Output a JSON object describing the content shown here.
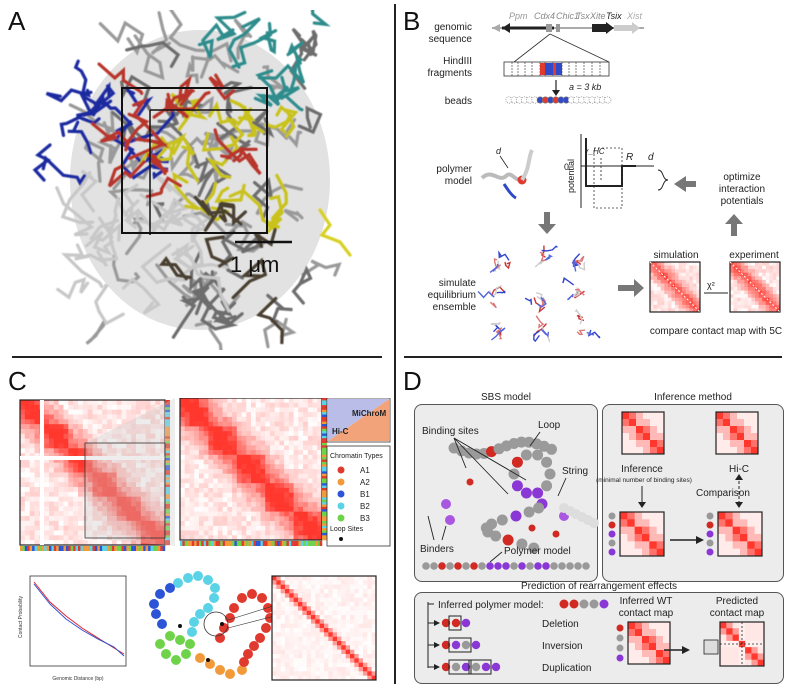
{
  "panels": {
    "a": {
      "letter": "A",
      "scale_label": "1 μm"
    },
    "b": {
      "letter": "B",
      "genes": [
        "Ppm",
        "Cdx4",
        "Chic1",
        "Tsx",
        "Xite",
        "Tsix",
        "Xist"
      ],
      "labels": {
        "genomic": "genomic sequence",
        "hind": "HindIII fragments",
        "beads": "beads",
        "bead_size": "a = 3 kb",
        "polymer": "polymer model",
        "simulate": "simulate equilibrium ensemble",
        "optimize": "optimize interaction potentials",
        "simulation": "simulation",
        "experiment": "experiment",
        "compare": "compare contact map with 5C",
        "chi": "χ²",
        "potential_axis": "potential",
        "r_hc": "r_HC",
        "R": "R",
        "d": "d",
        "zero": "0",
        "d_small": "d"
      }
    },
    "c": {
      "letter": "C",
      "legend_title": "Chromatin Types",
      "legend_items": [
        {
          "label": "A1",
          "color": "#e03a2f"
        },
        {
          "label": "A2",
          "color": "#f29a3a"
        },
        {
          "label": "B1",
          "color": "#2b55d6"
        },
        {
          "label": "B2",
          "color": "#5ad3e6"
        },
        {
          "label": "B3",
          "color": "#6fd34a"
        }
      ],
      "loop_sites": "Loop Sites",
      "tri_top": "MiChroM",
      "tri_bottom": "Hi-C",
      "xlabel": "Genomic Distance (bp)",
      "ylabel": "Contact Probability"
    },
    "d": {
      "letter": "D",
      "sbs_title": "SBS model",
      "binding_sites": "Binding sites",
      "loop": "Loop",
      "string": "String",
      "binders": "Binders",
      "polymer_model": "Polymer model",
      "inference_title": "Inference method",
      "inference": "Inference",
      "inference_sub": "(minimal number of binding sites)",
      "hic": "Hi-C",
      "comparison": "Comparison",
      "prediction_title": "Prediction of rearrangement effects",
      "inferred_polymer": "Inferred polymer model:",
      "deletion": "Deletion",
      "inversion": "Inversion",
      "duplication": "Duplication",
      "inferred_wt": "Inferred WT contact map",
      "predicted": "Predicted contact map"
    }
  }
}
